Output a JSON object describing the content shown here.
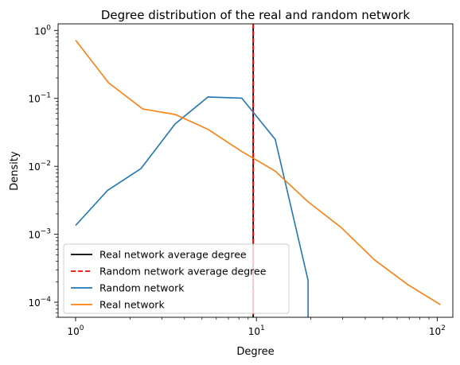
{
  "chart_data": {
    "type": "line",
    "title": "Degree distribution of the real and random network",
    "xlabel": "Degree",
    "ylabel": "Density",
    "xscale": "log",
    "yscale": "log",
    "xlim": [
      0.8,
      122
    ],
    "ylim": [
      6e-05,
      1.25
    ],
    "xticks": [
      {
        "value": 1,
        "base": "10",
        "exp": "0"
      },
      {
        "value": 10,
        "base": "10",
        "exp": "1"
      },
      {
        "value": 100,
        "base": "10",
        "exp": "2"
      }
    ],
    "yticks": [
      {
        "value": 0.0001,
        "base": "10",
        "exp": "−4"
      },
      {
        "value": 0.001,
        "base": "10",
        "exp": "−3"
      },
      {
        "value": 0.01,
        "base": "10",
        "exp": "−2"
      },
      {
        "value": 0.1,
        "base": "10",
        "exp": "−1"
      },
      {
        "value": 1,
        "base": "10",
        "exp": "0"
      }
    ],
    "vlines": [
      {
        "name": "Real network average degree",
        "x": 9.6,
        "color": "#000000",
        "style": "solid"
      },
      {
        "name": "Random network average degree",
        "x": 9.6,
        "color": "#ff0000",
        "style": "dashed"
      }
    ],
    "series": [
      {
        "name": "Random network",
        "color": "#1f77b4",
        "x": [
          1.0,
          1.5,
          2.3,
          3.55,
          5.4,
          8.3,
          12.7,
          19.3,
          19.3
        ],
        "y": [
          0.00135,
          0.0044,
          0.0093,
          0.042,
          0.105,
          0.101,
          0.025,
          0.00021,
          6e-05
        ]
      },
      {
        "name": "Real network",
        "color": "#ff7f0e",
        "x": [
          1.0,
          1.52,
          2.35,
          3.55,
          5.4,
          8.3,
          12.7,
          19.3,
          29.5,
          45,
          69,
          104
        ],
        "y": [
          0.72,
          0.17,
          0.07,
          0.058,
          0.035,
          0.0165,
          0.0085,
          0.003,
          0.00125,
          0.00042,
          0.00018,
          9.2e-05
        ]
      }
    ],
    "legend": {
      "position": "lower-left",
      "entries": [
        {
          "label": "Real network average degree",
          "color": "#000000",
          "style": "solid"
        },
        {
          "label": "Random network average degree",
          "color": "#ff0000",
          "style": "dashed"
        },
        {
          "label": "Random network",
          "color": "#1f77b4",
          "style": "solid"
        },
        {
          "label": "Real network",
          "color": "#ff7f0e",
          "style": "solid"
        }
      ]
    },
    "grid": false
  }
}
